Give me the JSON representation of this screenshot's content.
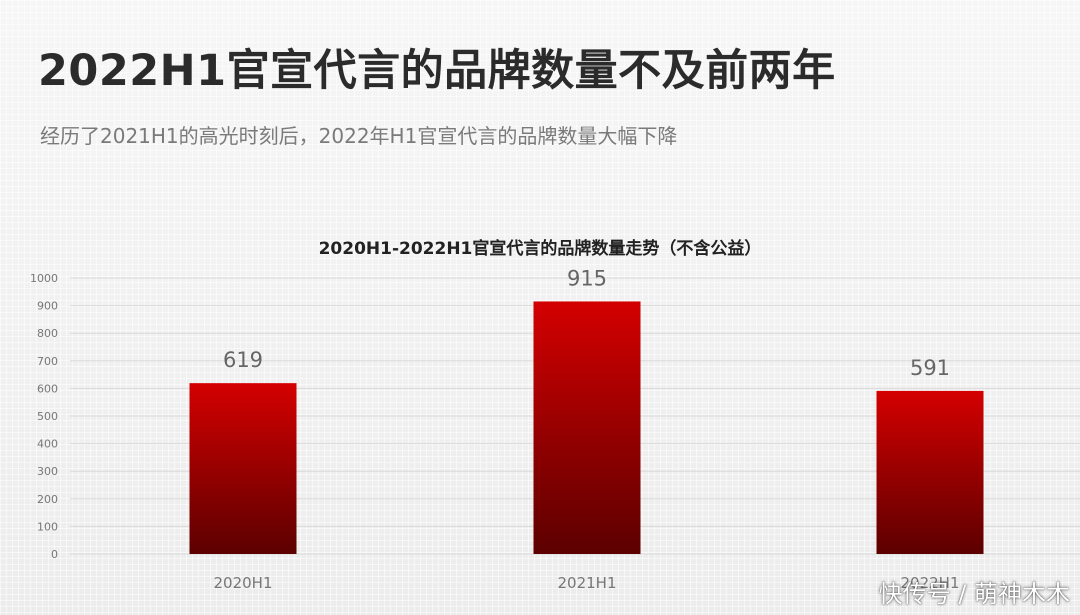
{
  "header": {
    "title": "2022H1官宣代言的品牌数量不及前两年",
    "subtitle": "经历了2021H1的高光时刻后，2022年H1官宣代言的品牌数量大幅下降"
  },
  "chart_data": {
    "type": "bar",
    "title": "2020H1-2022H1官宣代言的品牌数量走势（不含公益）",
    "categories": [
      "2020H1",
      "2021H1",
      "2022H1"
    ],
    "values": [
      619,
      915,
      591
    ],
    "xlabel": "",
    "ylabel": "",
    "ylim": [
      0,
      1000
    ],
    "yticks": [
      0,
      100,
      200,
      300,
      400,
      500,
      600,
      700,
      800,
      900,
      1000
    ],
    "grid": true,
    "legend": "none",
    "colors": {
      "bar_top": "#d40000",
      "bar_bottom": "#5c0000",
      "grid": "#d9d9d9",
      "label": "#666666"
    }
  },
  "watermark": "快传号 / 萌神木木"
}
